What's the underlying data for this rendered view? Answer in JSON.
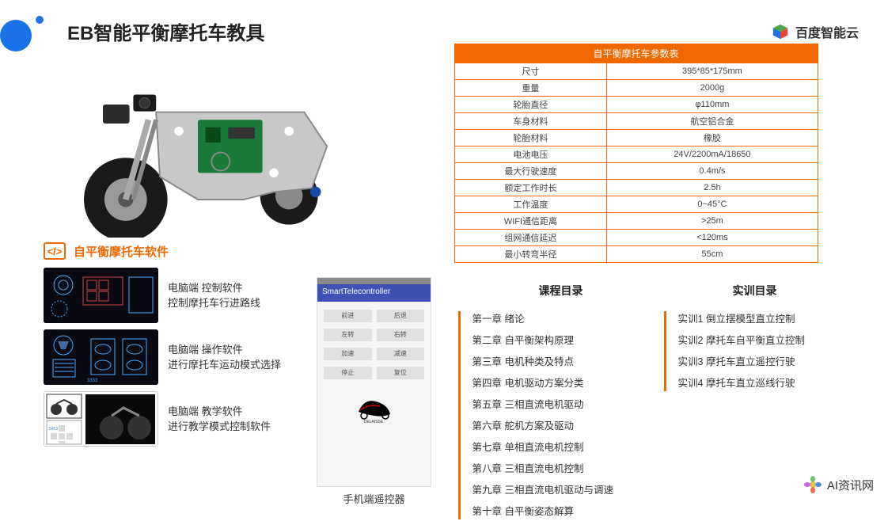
{
  "page": {
    "title": "EB智能平衡摩托车教具",
    "brand": "百度智能云"
  },
  "software": {
    "section_title": "自平衡摩托车软件",
    "items": [
      {
        "line1": "电脑端  控制软件",
        "line2": "控制摩托车行进路线"
      },
      {
        "line1": "电脑端   操作软件",
        "line2": "进行摩托车运动模式选择"
      },
      {
        "line1": "电脑端  教学软件",
        "line2": "进行教学模式控制软件"
      }
    ],
    "phone_title": "SmartTelecontroller",
    "phone_caption": "手机端遥控器",
    "phone_buttons": [
      "前进",
      "后退",
      "左转",
      "右转",
      "加速",
      "减速",
      "停止",
      "复位"
    ],
    "phone_logo_text": "DELAISSE"
  },
  "spec_table": {
    "header": "自平衡摩托车参数表",
    "rows": [
      [
        "尺寸",
        "395*85*175mm"
      ],
      [
        "重量",
        "2000g"
      ],
      [
        "轮胎直径",
        "φ110mm"
      ],
      [
        "车身材料",
        "航空铝合金"
      ],
      [
        "轮胎材料",
        "橡胶"
      ],
      [
        "电池电压",
        "24V/2200mA/18650"
      ],
      [
        "最大行驶速度",
        "0.4m/s"
      ],
      [
        "额定工作时长",
        "2.5h"
      ],
      [
        "工作温度",
        "0~45°C"
      ],
      [
        "WIFI通信距离",
        ">25m"
      ],
      [
        "组网通信延迟",
        "<120ms"
      ],
      [
        "最小转弯半径",
        "55cm"
      ]
    ]
  },
  "course": {
    "title": "课程目录",
    "items": [
      "第一章 绪论",
      "第二章 自平衡架构原理",
      "第三章 电机种类及特点",
      "第四章 电机驱动方案分类",
      "第五章 三相直流电机驱动",
      "第六章 舵机方案及驱动",
      "第七章 单相直流电机控制",
      "第八章 三相直流电机控制",
      "第九章 三相直流电机驱动与调速",
      "第十章 自平衡姿态解算"
    ]
  },
  "lab": {
    "title": "实训目录",
    "items": [
      "实训1 倒立摆模型直立控制",
      "实训2 摩托车自平衡直立控制",
      "实训3 摩托车直立遥控行驶",
      "实训4 摩托车直立巡线行驶"
    ]
  },
  "watermark": {
    "text": "AI资讯网"
  },
  "colors": {
    "accent": "#f26800",
    "blue": "#1a73e8",
    "text": "#333333"
  }
}
